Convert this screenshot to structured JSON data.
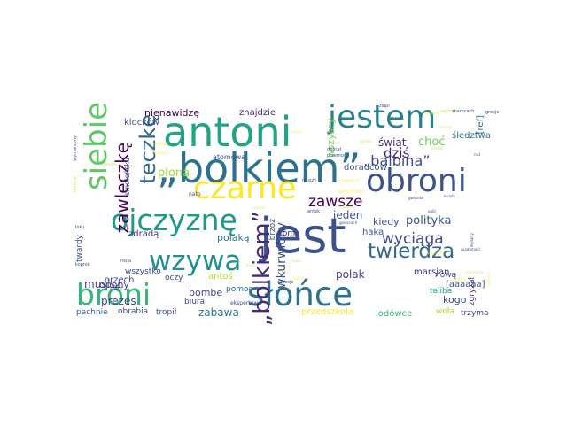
{
  "word_cloud": {
    "words": [
      {
        "text": "„bolkiem”",
        "color": "#2c728e"
      },
      {
        "text": "jest",
        "color": "#3b528b"
      },
      {
        "text": "antoni",
        "color": "#20a386"
      },
      {
        "text": "czarne",
        "color": "#fde725"
      },
      {
        "text": "słońce",
        "color": "#2c728e"
      },
      {
        "text": "jestem",
        "color": "#26828e"
      },
      {
        "text": "obroni",
        "color": "#3b528b"
      },
      {
        "text": "ojczyznę",
        "color": "#1f9a8a"
      },
      {
        "text": "wzywa",
        "color": "#21908d"
      },
      {
        "text": "siebie",
        "color": "#5ec962"
      },
      {
        "text": "broni",
        "color": "#35b779"
      },
      {
        "text": "twierdza",
        "color": "#31688e"
      },
      {
        "text": "„bolkiem”",
        "color": "#482878"
      },
      {
        "text": "teczkę",
        "color": "#31688e"
      },
      {
        "text": "zawleczkę",
        "color": "#440154"
      },
      {
        "text": "„balbina”",
        "color": "#3e4a89"
      },
      {
        "text": "zawsze",
        "color": "#440154"
      },
      {
        "text": "wyciąga",
        "color": "#3e4a89"
      },
      {
        "text": "wkurwiony",
        "color": "#3b528b"
      },
      {
        "text": "dziś",
        "color": "#482878"
      },
      {
        "text": "polityka",
        "color": "#3b528b"
      },
      {
        "text": "polak",
        "color": "#433e85"
      },
      {
        "text": "prezes",
        "color": "#404387"
      },
      {
        "text": "musisz",
        "color": "#414487"
      },
      {
        "text": "zabawa",
        "color": "#2a788e"
      },
      {
        "text": "nienawidzę",
        "color": "#440154"
      },
      {
        "text": "znajdzie",
        "color": "#482475"
      },
      {
        "text": "świat",
        "color": "#472d7b"
      },
      {
        "text": "choć",
        "color": "#6ece58"
      },
      {
        "text": "płoną",
        "color": "#a0da39"
      },
      {
        "text": "jeden",
        "color": "#3b528b"
      },
      {
        "text": "kiedy",
        "color": "#3b528b"
      },
      {
        "text": "kogo",
        "color": "#3e4989"
      },
      {
        "text": "opony",
        "color": "#414487"
      },
      {
        "text": "polaką",
        "color": "#2a788e"
      },
      {
        "text": "bombe",
        "color": "#414487"
      },
      {
        "text": "haka",
        "color": "#3b528b"
      },
      {
        "text": "marsjan",
        "color": "#472d7b"
      },
      {
        "text": "wszyscy",
        "color": "#7ad151"
      },
      {
        "text": "doradców",
        "color": "#3b528b"
      },
      {
        "text": "zdradą",
        "color": "#472d7b"
      },
      {
        "text": "klocków",
        "color": "#3e4989"
      },
      {
        "text": "[aaaaaa]",
        "color": "#3b528b"
      },
      {
        "text": "śledztwa",
        "color": "#2c728e"
      },
      {
        "text": "[ref]",
        "color": "#2c728e"
      },
      {
        "text": "komu",
        "color": "#46327e"
      },
      {
        "text": "brzoz",
        "color": "#3b528b"
      },
      {
        "text": "smoleńsku",
        "color": "#3b528b"
      },
      {
        "text": "orzech",
        "color": "#3e4989"
      },
      {
        "text": "wszystko",
        "color": "#3e4989"
      },
      {
        "text": "antoś",
        "color": "#bddf26"
      },
      {
        "text": "pomoc",
        "color": "#31688e"
      },
      {
        "text": "biura",
        "color": "#3e4a89"
      },
      {
        "text": "tropił",
        "color": "#3b528b"
      },
      {
        "text": "obrabia",
        "color": "#3b528b"
      },
      {
        "text": "pachnie",
        "color": "#31688e"
      },
      {
        "text": "przedszkola",
        "color": "#fde725"
      },
      {
        "text": "lodówce",
        "color": "#35b779"
      },
      {
        "text": "woła",
        "color": "#b5de2b"
      },
      {
        "text": "trzyma",
        "color": "#3e4989"
      },
      {
        "text": "nową",
        "color": "#3e4989"
      },
      {
        "text": "zgryzal",
        "color": "#482878"
      },
      {
        "text": "oczy",
        "color": "#3e4989"
      },
      {
        "text": "twardy",
        "color": "#3b528b"
      },
      {
        "text": "atomowa",
        "color": "#3b528b"
      },
      {
        "text": "taliba",
        "color": "#22a884"
      },
      {
        "text": "ekspertów",
        "color": "#3e4989"
      },
      {
        "text": "znam",
        "color": "#482878"
      },
      {
        "text": "rosja",
        "color": "#3b528b"
      },
      {
        "text": "kopnie",
        "color": "#3b528b"
      },
      {
        "text": "nato",
        "color": "#3b528b"
      },
      {
        "text": "dobrał",
        "color": "#3b528b"
      },
      {
        "text": "przemoc",
        "color": "#3b528b"
      },
      {
        "text": "muszy",
        "color": "#3b528b"
      },
      {
        "text": "antek",
        "color": "#3b528b"
      },
      {
        "text": "szpiegi",
        "color": "#b5de2b"
      },
      {
        "text": "ziupi",
        "color": "#3b528b"
      },
      {
        "text": "opiera",
        "color": "#fde725"
      },
      {
        "text": "znamcach",
        "color": "#3b528b"
      },
      {
        "text": "grecje",
        "color": "#3b528b"
      },
      {
        "text": "wymarzony",
        "color": "#3b528b"
      },
      {
        "text": "samochodu",
        "color": "#fde725"
      },
      {
        "text": "spasibo",
        "color": "#b5de2b"
      },
      {
        "text": "rządzić",
        "color": "#b5de2b"
      },
      {
        "text": "zmielona",
        "color": "#fde725"
      },
      {
        "text": "loku",
        "color": "#3b528b"
      },
      {
        "text": "tęsknię",
        "color": "#b5de2b"
      },
      {
        "text": "gotowi",
        "color": "#fde725"
      },
      {
        "text": "szeecje",
        "color": "#3b528b"
      },
      {
        "text": "kapu",
        "color": "#b5de2b"
      },
      {
        "text": "egzamin",
        "color": "#fde725"
      },
      {
        "text": "spina",
        "color": "#fde725"
      },
      {
        "text": "skorpion",
        "color": "#b5de2b"
      },
      {
        "text": "pogodnie",
        "color": "#fde725"
      },
      {
        "text": "zapomni",
        "color": "#fde725"
      },
      {
        "text": "gotów",
        "color": "#b5de2b"
      },
      {
        "text": "gwiazda",
        "color": "#3b528b"
      },
      {
        "text": "ksiądz",
        "color": "#3b528b"
      },
      {
        "text": "zmiany",
        "color": "#fde725"
      },
      {
        "text": "mocny",
        "color": "#b5de2b"
      },
      {
        "text": "goniscach",
        "color": "#3b528b"
      },
      {
        "text": "palić",
        "color": "#3b528b"
      },
      {
        "text": "wydarty",
        "color": "#3b528b"
      },
      {
        "text": "pułapka",
        "color": "#fde725"
      },
      {
        "text": "naprzeciw",
        "color": "#b5de2b"
      },
      {
        "text": "zablokuj",
        "color": "#fde725"
      },
      {
        "text": "wiadomość",
        "color": "#3b528b"
      },
      {
        "text": "pasmo",
        "color": "#b5de2b"
      },
      {
        "text": "ponad",
        "color": "#fde725"
      },
      {
        "text": "krzyk",
        "color": "#b5de2b"
      },
      {
        "text": "nuż",
        "color": "#3b528b"
      }
    ]
  }
}
